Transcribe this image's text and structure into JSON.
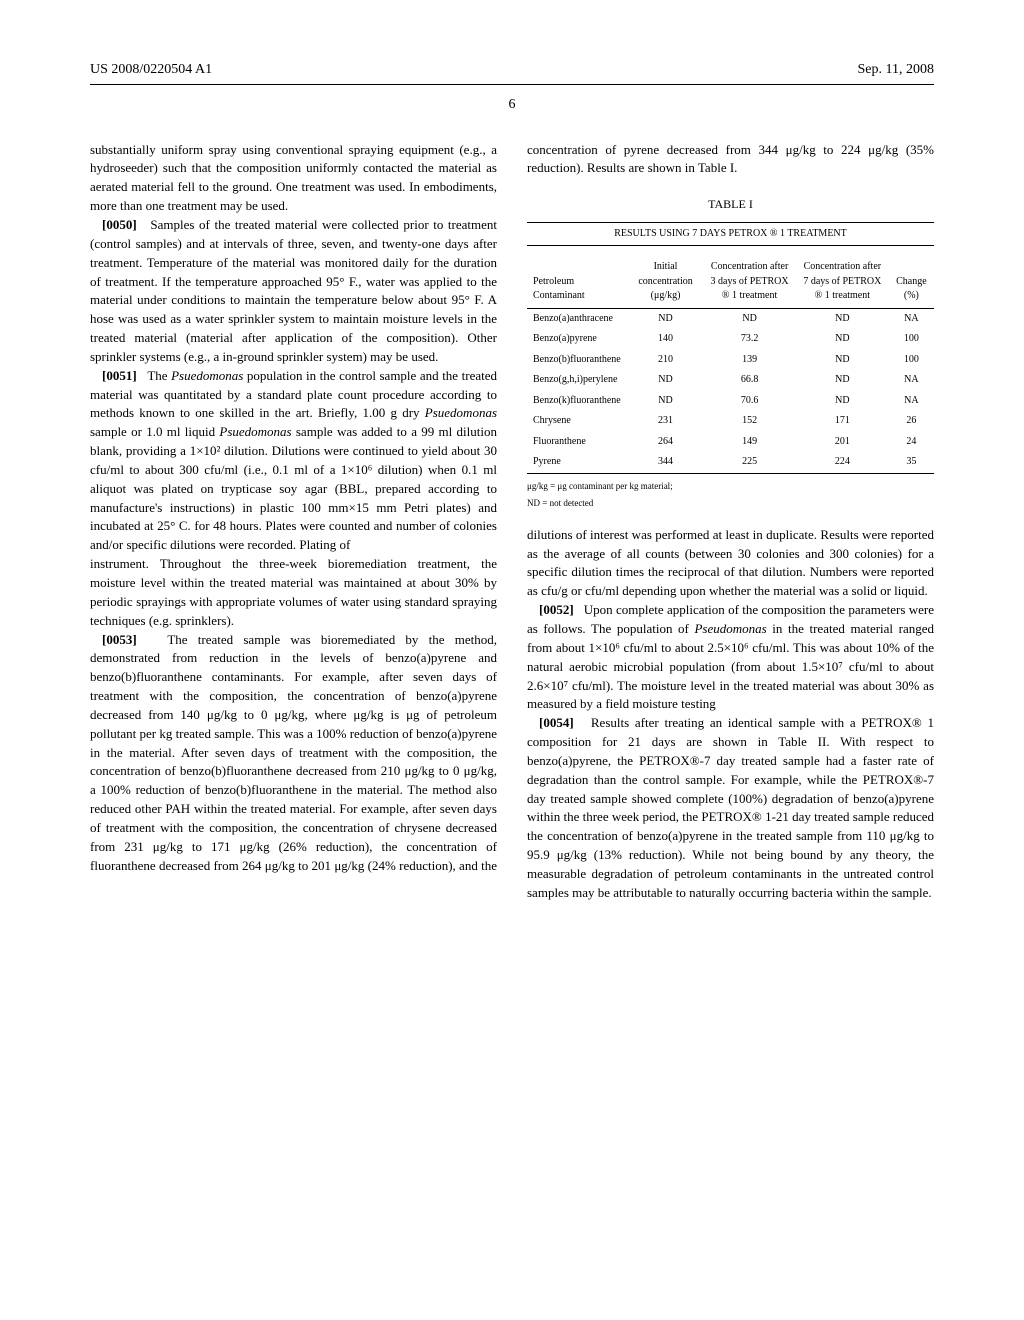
{
  "header": {
    "left": "US 2008/0220504 A1",
    "right": "Sep. 11, 2008"
  },
  "pageNumber": "6",
  "paragraphs": {
    "p0_intro": "substantially uniform spray using conventional spraying equipment (e.g., a hydroseeder) such that the composition uniformly contacted the material as aerated material fell to the ground. One treatment was used. In embodiments, more than one treatment may be used.",
    "p50_num": "[0050]",
    "p50": "Samples of the treated material were collected prior to treatment (control samples) and at intervals of three, seven, and twenty-one days after treatment. Temperature of the material was monitored daily for the duration of treatment. If the temperature approached 95° F., water was applied to the material under conditions to maintain the temperature below about 95° F. A hose was used as a water sprinkler system to maintain moisture levels in the treated material (material after application of the composition). Other sprinkler systems (e.g., a in-ground sprinkler system) may be used.",
    "p51_num": "[0051]",
    "p51a": "The ",
    "p51b": "Psuedomonas",
    "p51c": " population in the control sample and the treated material was quantitated by a standard plate count procedure according to methods known to one skilled in the art. Briefly, 1.00 g dry ",
    "p51d": "Psuedomonas",
    "p51e": " sample or 1.0 ml liquid ",
    "p51f": "Psuedomonas",
    "p51g": " sample was added to a 99 ml dilution blank, providing a 1×10² dilution. Dilutions were continued to yield about 30 cfu/ml to about 300 cfu/ml (i.e., 0.1 ml of a 1×10⁶ dilution) when 0.1 ml aliquot was plated on trypticase soy agar (BBL, prepared according to manufacture's instructions) in plastic 100 mm×15 mm Petri plates) and incubated at 25° C. for 48 hours. Plates were counted and number of colonies and/or specific dilutions were recorded. Plating of",
    "col2_intro": "instrument. Throughout the three-week bioremediation treatment, the moisture level within the treated material was maintained at about 30% by periodic sprayings with appropriate volumes of water using standard spraying techniques (e.g. sprinklers).",
    "p53_num": "[0053]",
    "p53": "The treated sample was bioremediated by the method, demonstrated from reduction in the levels of benzo(a)pyrene and benzo(b)fluoranthene contaminants. For example, after seven days of treatment with the composition, the concentration of benzo(a)pyrene decreased from 140 μg/kg to 0 μg/kg, where μg/kg is μg of petroleum pollutant per kg treated sample. This was a 100% reduction of benzo(a)pyrene in the material. After seven days of treatment with the composition, the concentration of benzo(b)fluoranthene decreased from 210 μg/kg to 0 μg/kg, a 100% reduction of benzo(b)fluoranthene in the material. The method also reduced other PAH within the treated material. For example, after seven days of treatment with the composition, the concentration of chrysene decreased from 231 μg/kg to 171 μg/kg (26% reduction), the concentration of fluoranthene decreased from 264 μg/kg to 201 μg/kg (24% reduction), and the concentration of pyrene decreased from 344 μg/kg to 224 μg/kg (35% reduction). Results are shown in Table I.",
    "dilutions": "dilutions of interest was performed at least in duplicate. Results were reported as the average of all counts (between 30 colonies and 300 colonies) for a specific dilution times the reciprocal of that dilution. Numbers were reported as cfu/g or cfu/ml depending upon whether the material was a solid or liquid.",
    "p52_num": "[0052]",
    "p52a": "Upon complete application of the composition the parameters were as follows. The population of ",
    "p52b": "Pseudomonas",
    "p52c": " in the treated material ranged from about 1×10⁶ cfu/ml to about 2.5×10⁶ cfu/ml. This was about 10% of the natural aerobic microbial population (from about 1.5×10⁷ cfu/ml to about 2.6×10⁷ cfu/ml). The moisture level in the treated material was about 30% as measured by a field moisture testing",
    "p54_num": "[0054]",
    "p54": "Results after treating an identical sample with a PETROX® 1 composition for 21 days are shown in Table II. With respect to benzo(a)pyrene, the PETROX®-7 day treated sample had a faster rate of degradation than the control sample. For example, while the PETROX®-7 day treated sample showed complete (100%) degradation of benzo(a)pyrene within the three week period, the PETROX® 1-21 day treated sample reduced the concentration of benzo(a)pyrene in the treated sample from 110 μg/kg to 95.9 μg/kg (13% reduction). While not being bound by any theory, the measurable degradation of petroleum contaminants in the untreated control samples may be attributable to naturally occurring bacteria within the sample."
  },
  "table": {
    "title": "TABLE I",
    "subtitle": "RESULTS USING 7 DAYS PETROX ® 1 TREATMENT",
    "headers": {
      "c1": "Petroleum Contaminant",
      "c2": "Initial concentration (μg/kg)",
      "c3": "Concentration after 3 days of PETROX ® 1 treatment",
      "c4": "Concentration after 7 days of PETROX ® 1 treatment",
      "c5": "Change (%)"
    },
    "rows": [
      {
        "c1": "Benzo(a)anthracene",
        "c2": "ND",
        "c3": "ND",
        "c4": "ND",
        "c5": "NA"
      },
      {
        "c1": "Benzo(a)pyrene",
        "c2": "140",
        "c3": "73.2",
        "c4": "ND",
        "c5": "100"
      },
      {
        "c1": "Benzo(b)fluoranthene",
        "c2": "210",
        "c3": "139",
        "c4": "ND",
        "c5": "100"
      },
      {
        "c1": "Benzo(g,h,i)perylene",
        "c2": "ND",
        "c3": "66.8",
        "c4": "ND",
        "c5": "NA"
      },
      {
        "c1": "Benzo(k)fluoranthene",
        "c2": "ND",
        "c3": "70.6",
        "c4": "ND",
        "c5": "NA"
      },
      {
        "c1": "Chrysene",
        "c2": "231",
        "c3": "152",
        "c4": "171",
        "c5": "26"
      },
      {
        "c1": "Fluoranthene",
        "c2": "264",
        "c3": "149",
        "c4": "201",
        "c5": "24"
      },
      {
        "c1": "Pyrene",
        "c2": "344",
        "c3": "225",
        "c4": "224",
        "c5": "35"
      }
    ],
    "notes": {
      "n1": "μg/kg = μg contaminant per kg material;",
      "n2": "ND = not detected"
    }
  }
}
